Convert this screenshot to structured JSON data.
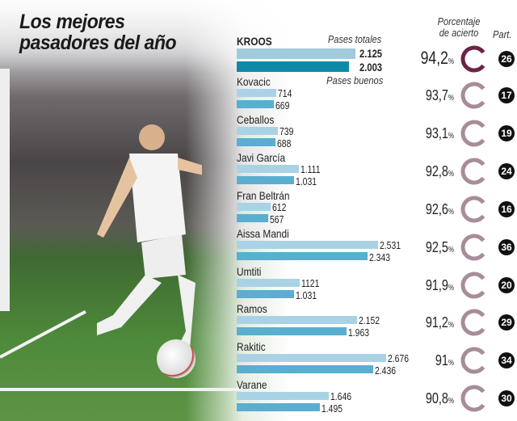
{
  "title_line1": "Los mejores",
  "title_line2": "pasadores del año",
  "header": {
    "total_label": "Pases totales",
    "good_label": "Pases buenos",
    "pct_label_line1": "Porcentaje",
    "pct_label_line2": "de acierto",
    "matches_label": "Part."
  },
  "colors": {
    "total_bar": "#a9d3e4",
    "good_bar": "#5aaed0",
    "highlight_total": "#9fcbdc",
    "highlight_good": "#0f8aa6",
    "highlight_ring": "#6b2448",
    "ring": "#a88c99"
  },
  "chart_data": {
    "type": "bar",
    "orientation": "horizontal",
    "categories": [
      "KROOS",
      "Kovacic",
      "Ceballos",
      "Javi García",
      "Fran Beltrán",
      "Aissa Mandi",
      "Umtiti",
      "Ramos",
      "Rakitic",
      "Varane"
    ],
    "name_labels": [
      "KROOS",
      "Kovacic",
      "Ceballos",
      "Javi\nGarcía",
      "Fran\nBeltrán",
      "Aissa\nMandi",
      "Umtiti",
      "Ramos",
      "Rakitic",
      "Varane"
    ],
    "series": [
      {
        "name": "Pases totales",
        "values": [
          2125,
          714,
          739,
          1111,
          612,
          2531,
          1121,
          2152,
          2676,
          1646
        ],
        "labels": [
          "2.125",
          "714",
          "739",
          "1.111",
          "612",
          "2.531",
          "1121",
          "2.152",
          "2.676",
          "1.646"
        ]
      },
      {
        "name": "Pases buenos",
        "values": [
          2003,
          669,
          688,
          1031,
          567,
          2343,
          1031,
          1963,
          2436,
          1495
        ],
        "labels": [
          "2.003",
          "669",
          "688",
          "1.031",
          "567",
          "2.343",
          "1.031",
          "1.963",
          "2.436",
          "1.495"
        ]
      }
    ],
    "accuracy_pct": [
      94.2,
      93.7,
      93.1,
      92.8,
      92.6,
      92.5,
      91.9,
      91.2,
      91,
      90.8
    ],
    "accuracy_labels": [
      "94,2",
      "93,7",
      "93,1",
      "92,8",
      "92,6",
      "92,5",
      "91,9",
      "91,2",
      "91",
      "90,8"
    ],
    "pct_unit": "%",
    "matches": [
      "26",
      "17",
      "19",
      "24",
      "16",
      "36",
      "20",
      "29",
      "34",
      "30"
    ]
  }
}
